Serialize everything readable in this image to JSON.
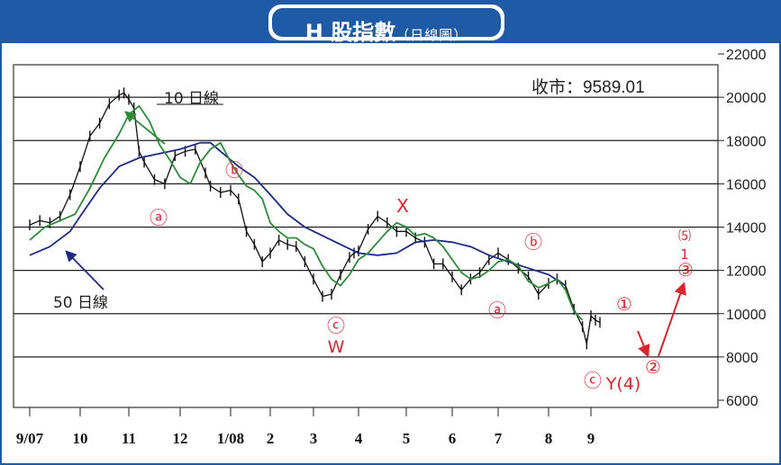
{
  "title": {
    "main": "H 股指數",
    "sub": "（日線圖）"
  },
  "close_label": "收市：9589.01",
  "chart_data": {
    "type": "line",
    "title": "H 股指數（日線圖）",
    "xlabel": "",
    "ylabel": "",
    "ylim": [
      6000,
      22000
    ],
    "y_ticks": [
      "22000",
      "20000",
      "18000",
      "16000",
      "14000",
      "12000",
      "10000",
      "8000",
      "6000"
    ],
    "x_ticks": [
      "9/07",
      "10",
      "11",
      "12",
      "1/08",
      "2",
      "3",
      "4",
      "5",
      "6",
      "7",
      "8",
      "9"
    ],
    "grid": "horizontal",
    "series": [
      {
        "name": "10 日線",
        "color": "#2e8b3a",
        "x": [
          0,
          0.3,
          0.6,
          0.9,
          1.2,
          1.5,
          1.8,
          2.0,
          2.2,
          2.4,
          2.6,
          2.8,
          3.0,
          3.2,
          3.4,
          3.6,
          3.8,
          4.0,
          4.2,
          4.4,
          4.6,
          4.8,
          5.0,
          5.2,
          5.4,
          5.6,
          5.8,
          6.0,
          6.2,
          6.4,
          6.6,
          6.8,
          7.0,
          7.2,
          7.4,
          7.6,
          7.8,
          8.0,
          8.2,
          8.4,
          8.6,
          8.8,
          9.0,
          9.2,
          9.4,
          9.6,
          9.8,
          10.0,
          10.2,
          10.4,
          10.6,
          10.8,
          11.0,
          11.2,
          11.4,
          11.6,
          11.8,
          12.0,
          12.2,
          12.4,
          12.6,
          12.8
        ],
        "values": [
          13400,
          14000,
          14300,
          14600,
          15800,
          17200,
          18300,
          19200,
          19600,
          18900,
          17800,
          17100,
          16300,
          16000,
          17000,
          17600,
          17900,
          17000,
          16400,
          15900,
          15700,
          15300,
          14200,
          13800,
          13500,
          13500,
          13200,
          13000,
          12200,
          11600,
          11300,
          11800,
          12500,
          12800,
          13300,
          13800,
          14200,
          14000,
          13600,
          13700,
          13500,
          13100,
          12500,
          11900,
          11600,
          11700,
          12000,
          12400,
          12500,
          12200,
          11500,
          11200,
          11400,
          11600,
          11100,
          10100,
          9700,
          null,
          null,
          null,
          null,
          null
        ]
      },
      {
        "name": "50 日線",
        "color": "#1c2a86",
        "x": [
          0,
          0.4,
          0.8,
          1.0,
          1.4,
          1.8,
          2.2,
          2.6,
          3.0,
          3.4,
          3.6,
          3.8,
          4.2,
          4.6,
          5.0,
          5.4,
          5.8,
          6.2,
          6.6,
          7.0,
          7.4,
          7.8,
          8.2,
          8.6,
          9.0,
          9.4,
          9.8,
          10.2,
          10.6,
          11.0,
          11.4,
          11.8,
          12.2
        ],
        "values": [
          12700,
          13100,
          13800,
          14500,
          15800,
          16800,
          17200,
          17400,
          17600,
          17900,
          17900,
          17500,
          16800,
          16300,
          15500,
          14600,
          14000,
          13600,
          13200,
          12800,
          12700,
          12800,
          13300,
          13400,
          13300,
          13100,
          12700,
          12400,
          12100,
          11800,
          11300,
          null,
          null
        ]
      },
      {
        "name": "日線",
        "color": "#111111",
        "x": [
          0,
          0.2,
          0.4,
          0.6,
          0.8,
          1.0,
          1.2,
          1.4,
          1.6,
          1.8,
          1.9,
          2.0,
          2.1,
          2.2,
          2.3,
          2.5,
          2.7,
          2.9,
          3.1,
          3.3,
          3.5,
          3.6,
          3.8,
          4.0,
          4.2,
          4.4,
          4.6,
          4.8,
          5.0,
          5.2,
          5.4,
          5.6,
          5.8,
          6.0,
          6.2,
          6.4,
          6.6,
          6.8,
          6.9,
          7.0,
          7.2,
          7.4,
          7.6,
          7.8,
          8.0,
          8.2,
          8.4,
          8.6,
          8.8,
          9.0,
          9.2,
          9.4,
          9.6,
          9.8,
          10.0,
          10.2,
          10.4,
          10.6,
          10.8,
          11.0,
          11.2,
          11.4,
          11.6,
          11.8,
          11.9,
          12.0,
          12.1,
          12.2
        ],
        "values": [
          14100,
          14300,
          14200,
          14500,
          15500,
          16800,
          18200,
          18800,
          19700,
          20100,
          20200,
          19900,
          19500,
          17500,
          17000,
          16200,
          16000,
          17300,
          17500,
          17600,
          16500,
          15900,
          15600,
          15700,
          15300,
          13800,
          13200,
          12400,
          12800,
          13400,
          13200,
          13100,
          12400,
          11600,
          10800,
          10900,
          11800,
          12600,
          12800,
          12900,
          13900,
          14500,
          14200,
          13800,
          13800,
          13500,
          13300,
          12300,
          12300,
          11700,
          11100,
          11600,
          11900,
          12500,
          12800,
          12500,
          12100,
          11700,
          10900,
          11400,
          11600,
          11300,
          10200,
          9400,
          8600,
          9900,
          9700,
          9600
        ]
      }
    ],
    "annotations": [
      {
        "text": "10 日線",
        "color": "#222222"
      },
      {
        "text": "50 日線",
        "color": "#222222"
      },
      {
        "text": "ⓐ",
        "color": "#d8262c"
      },
      {
        "text": "ⓑ",
        "color": "#d8262c"
      },
      {
        "text": "ⓒ",
        "color": "#d8262c"
      },
      {
        "text": "W",
        "color": "#d8262c"
      },
      {
        "text": "X",
        "color": "#d8262c"
      },
      {
        "text": "ⓐ",
        "color": "#d8262c"
      },
      {
        "text": "ⓑ",
        "color": "#d8262c"
      },
      {
        "text": "ⓒ",
        "color": "#d8262c"
      },
      {
        "text": "Y(4)",
        "color": "#d8262c"
      },
      {
        "text": "①",
        "color": "#d8262c"
      },
      {
        "text": "②",
        "color": "#d8262c"
      },
      {
        "text": "⑸",
        "color": "#d8262c"
      },
      {
        "text": "1",
        "color": "#d8262c"
      },
      {
        "text": "③",
        "color": "#d8262c"
      }
    ]
  }
}
